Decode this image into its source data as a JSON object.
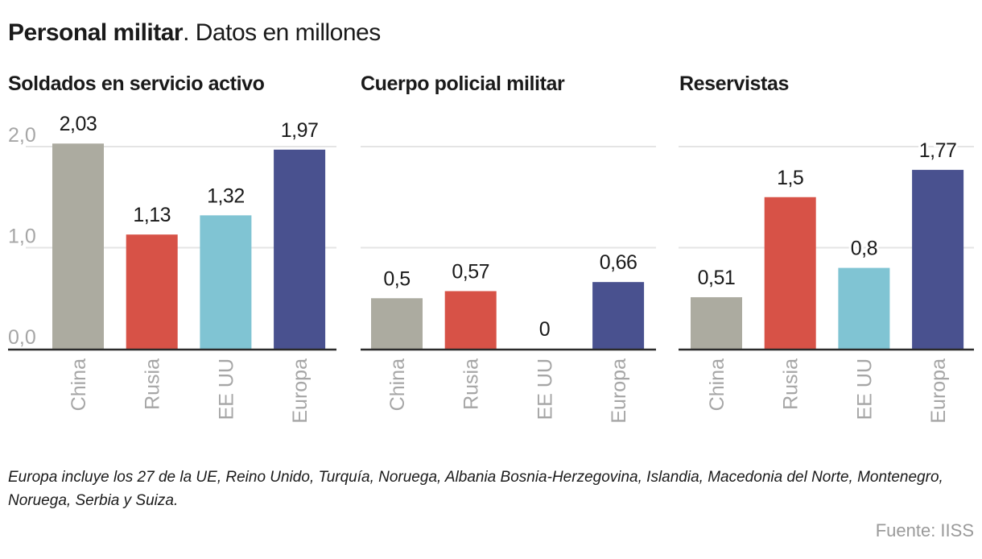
{
  "header": {
    "title_bold": "Personal militar",
    "title_rest": ". Datos en millones"
  },
  "chart_data": [
    {
      "type": "bar",
      "title": "Soldados en servicio activo",
      "categories": [
        "China",
        "Rusia",
        "EE UU",
        "Europa"
      ],
      "values": [
        2.03,
        1.13,
        1.32,
        1.97
      ],
      "value_labels": [
        "2,03",
        "1,13",
        "1,32",
        "1,97"
      ],
      "ylim": [
        0,
        2.0
      ],
      "yticks": [
        0,
        1,
        2
      ],
      "ytick_labels": [
        "0,0",
        "1,0",
        "2,0"
      ],
      "show_ytick_labels": true,
      "grid": true,
      "xlabel": "",
      "ylabel": ""
    },
    {
      "type": "bar",
      "title": "Cuerpo policial militar",
      "categories": [
        "China",
        "Rusia",
        "EE UU",
        "Europa"
      ],
      "values": [
        0.5,
        0.57,
        0,
        0.66
      ],
      "value_labels": [
        "0,5",
        "0,57",
        "0",
        "0,66"
      ],
      "ylim": [
        0,
        2.0
      ],
      "yticks": [
        0,
        1,
        2
      ],
      "ytick_labels": [
        "0,0",
        "1,0",
        "2,0"
      ],
      "show_ytick_labels": false,
      "grid": true,
      "xlabel": "",
      "ylabel": ""
    },
    {
      "type": "bar",
      "title": "Reservistas",
      "categories": [
        "China",
        "Rusia",
        "EE UU",
        "Europa"
      ],
      "values": [
        0.51,
        1.5,
        0.8,
        1.77
      ],
      "value_labels": [
        "0,51",
        "1,5",
        "0,8",
        "1,77"
      ],
      "ylim": [
        0,
        2.0
      ],
      "yticks": [
        0,
        1,
        2
      ],
      "ytick_labels": [
        "0,0",
        "1,0",
        "2,0"
      ],
      "show_ytick_labels": false,
      "grid": true,
      "xlabel": "",
      "ylabel": ""
    }
  ],
  "colors": {
    "China": "#acaba0",
    "Rusia": "#d75247",
    "EE UU": "#80c4d3",
    "Europa": "#49518f",
    "axis": "#2b2b2b",
    "grid": "#e4e4e4",
    "tick_label": "#a6a6a6",
    "category_label": "#a6a6a6"
  },
  "footer": {
    "note": "Europa incluye los 27 de la UE, Reino Unido, Turquía, Noruega, Albania Bosnia-Herzegovina, Islandia, Macedonia del Norte, Montenegro, Noruega, Serbia y Suiza.",
    "source": "Fuente: IISS"
  }
}
